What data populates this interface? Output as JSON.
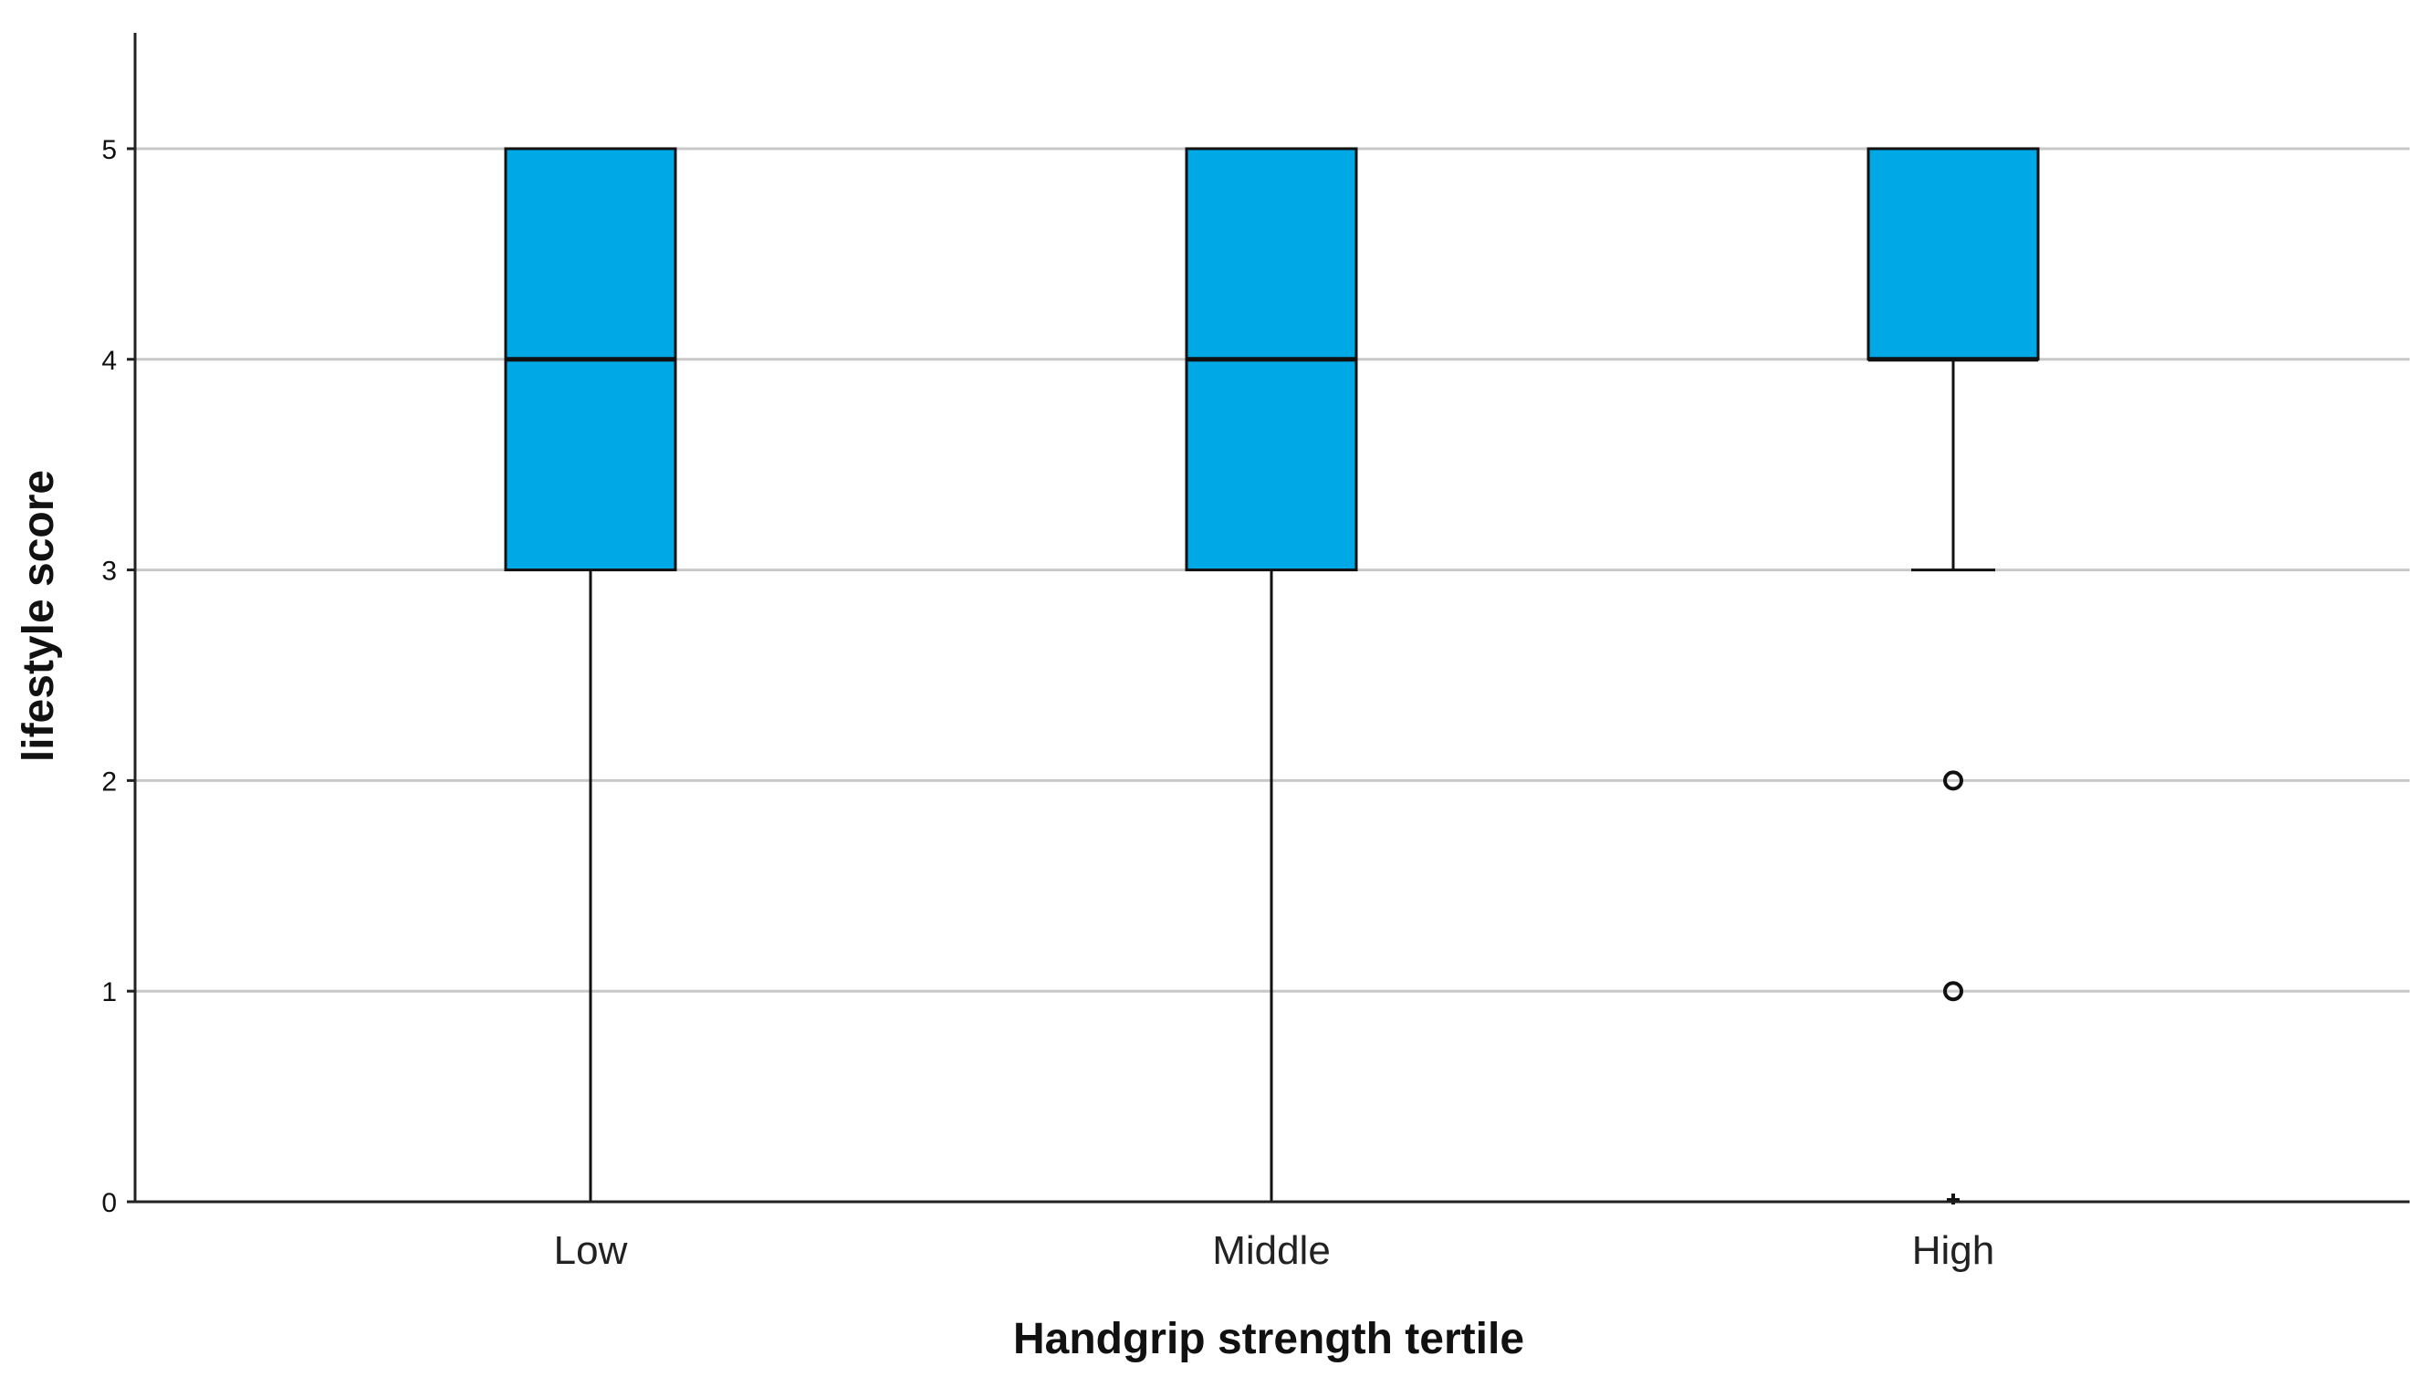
{
  "chart_data": {
    "type": "boxplot",
    "xlabel": "Handgrip strength tertile",
    "ylabel": "lifestyle score",
    "categories": [
      "Low",
      "Middle",
      "High"
    ],
    "ylim": [
      0,
      5.55
    ],
    "yticks": [
      0,
      1,
      2,
      3,
      4,
      5
    ],
    "ytick_labels": [
      "0",
      "1",
      "2",
      "3",
      "4",
      "5"
    ],
    "grid": true,
    "box_color": "#00a8e6",
    "boxes": [
      {
        "category": "Low",
        "min": 0,
        "q1": 3,
        "median": 4,
        "q3": 5,
        "max": 5,
        "outliers": [],
        "extremes": []
      },
      {
        "category": "Middle",
        "min": 0,
        "q1": 3,
        "median": 4,
        "q3": 5,
        "max": 5,
        "outliers": [],
        "extremes": []
      },
      {
        "category": "High",
        "min": 3,
        "q1": 4,
        "median": 4,
        "q3": 5,
        "max": 5,
        "outliers": [
          2,
          1
        ],
        "extremes": [
          0
        ]
      }
    ]
  }
}
